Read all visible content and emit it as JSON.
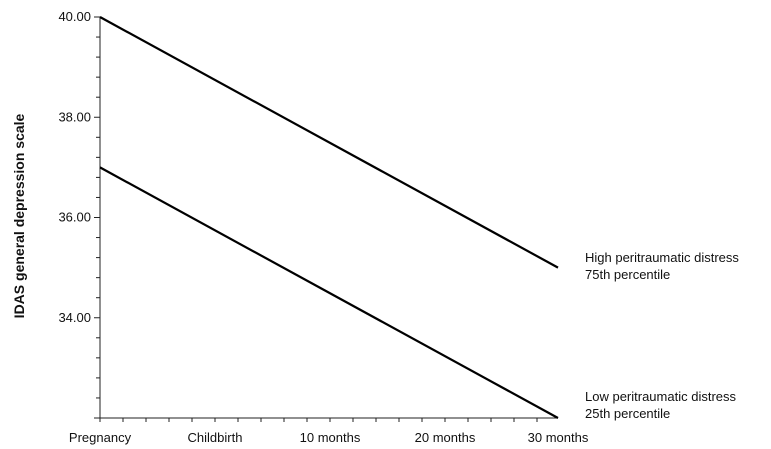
{
  "chart_data": {
    "type": "line",
    "title": "",
    "ylabel": "IDAS general depression scale",
    "xlabel": "",
    "categories": [
      "Pregnancy",
      "Childbirth",
      "10 months",
      "20 months",
      "30 months"
    ],
    "ylim": [
      32.0,
      40.0
    ],
    "yticks": [
      "40.00",
      "38.00",
      "36.00",
      "34.00"
    ],
    "grid": false,
    "series": [
      {
        "name": "High peritraumatic distress",
        "sublabel": "75th percentile",
        "x": [
          "Pregnancy",
          "30 months"
        ],
        "values": [
          40.0,
          35.0
        ]
      },
      {
        "name": "Low peritraumatic distress",
        "sublabel": "25th percentile",
        "x": [
          "Pregnancy",
          "30 months"
        ],
        "values": [
          37.0,
          32.0
        ]
      }
    ]
  }
}
